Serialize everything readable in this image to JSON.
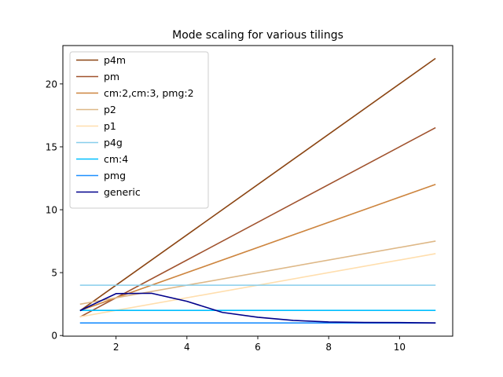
{
  "chart_data": {
    "type": "line",
    "title": "Mode scaling for various tilings",
    "xlabel": "",
    "ylabel": "",
    "xlim": [
      0.5,
      11.5
    ],
    "ylim": [
      -0.05,
      23.05
    ],
    "x_ticks": [
      2,
      4,
      6,
      8,
      10
    ],
    "y_ticks": [
      0,
      5,
      10,
      15,
      20
    ],
    "grid": false,
    "legend_position": "top-left",
    "series": [
      {
        "name": "p4m",
        "color": "#8b4513",
        "x": [
          1,
          11
        ],
        "y": [
          2,
          22
        ]
      },
      {
        "name": "pm",
        "color": "#a0522d",
        "x": [
          1,
          11
        ],
        "y": [
          1.5,
          16.5
        ]
      },
      {
        "name": "cm:2,cm:3, pmg:2",
        "color": "#cd853f",
        "x": [
          1,
          11
        ],
        "y": [
          2,
          12
        ]
      },
      {
        "name": "p2",
        "color": "#deb887",
        "x": [
          1,
          11
        ],
        "y": [
          2.5,
          7.5
        ]
      },
      {
        "name": "p1",
        "color": "#ffdead",
        "x": [
          1,
          11
        ],
        "y": [
          1.5,
          6.5
        ]
      },
      {
        "name": "p4g",
        "color": "#87ceeb",
        "x": [
          1,
          11
        ],
        "y": [
          4,
          4
        ]
      },
      {
        "name": "cm:4",
        "color": "#00bfff",
        "x": [
          1,
          11
        ],
        "y": [
          2,
          2
        ]
      },
      {
        "name": "pmg",
        "color": "#1e90ff",
        "x": [
          1,
          11
        ],
        "y": [
          1,
          1
        ]
      },
      {
        "name": "generic",
        "color": "#00008b",
        "x": [
          1,
          2,
          3,
          4,
          5,
          6,
          7,
          8,
          9,
          10,
          11
        ],
        "y": [
          2.0,
          3.33,
          3.36,
          2.72,
          1.84,
          1.45,
          1.2,
          1.08,
          1.04,
          1.03,
          1.0
        ]
      }
    ]
  }
}
